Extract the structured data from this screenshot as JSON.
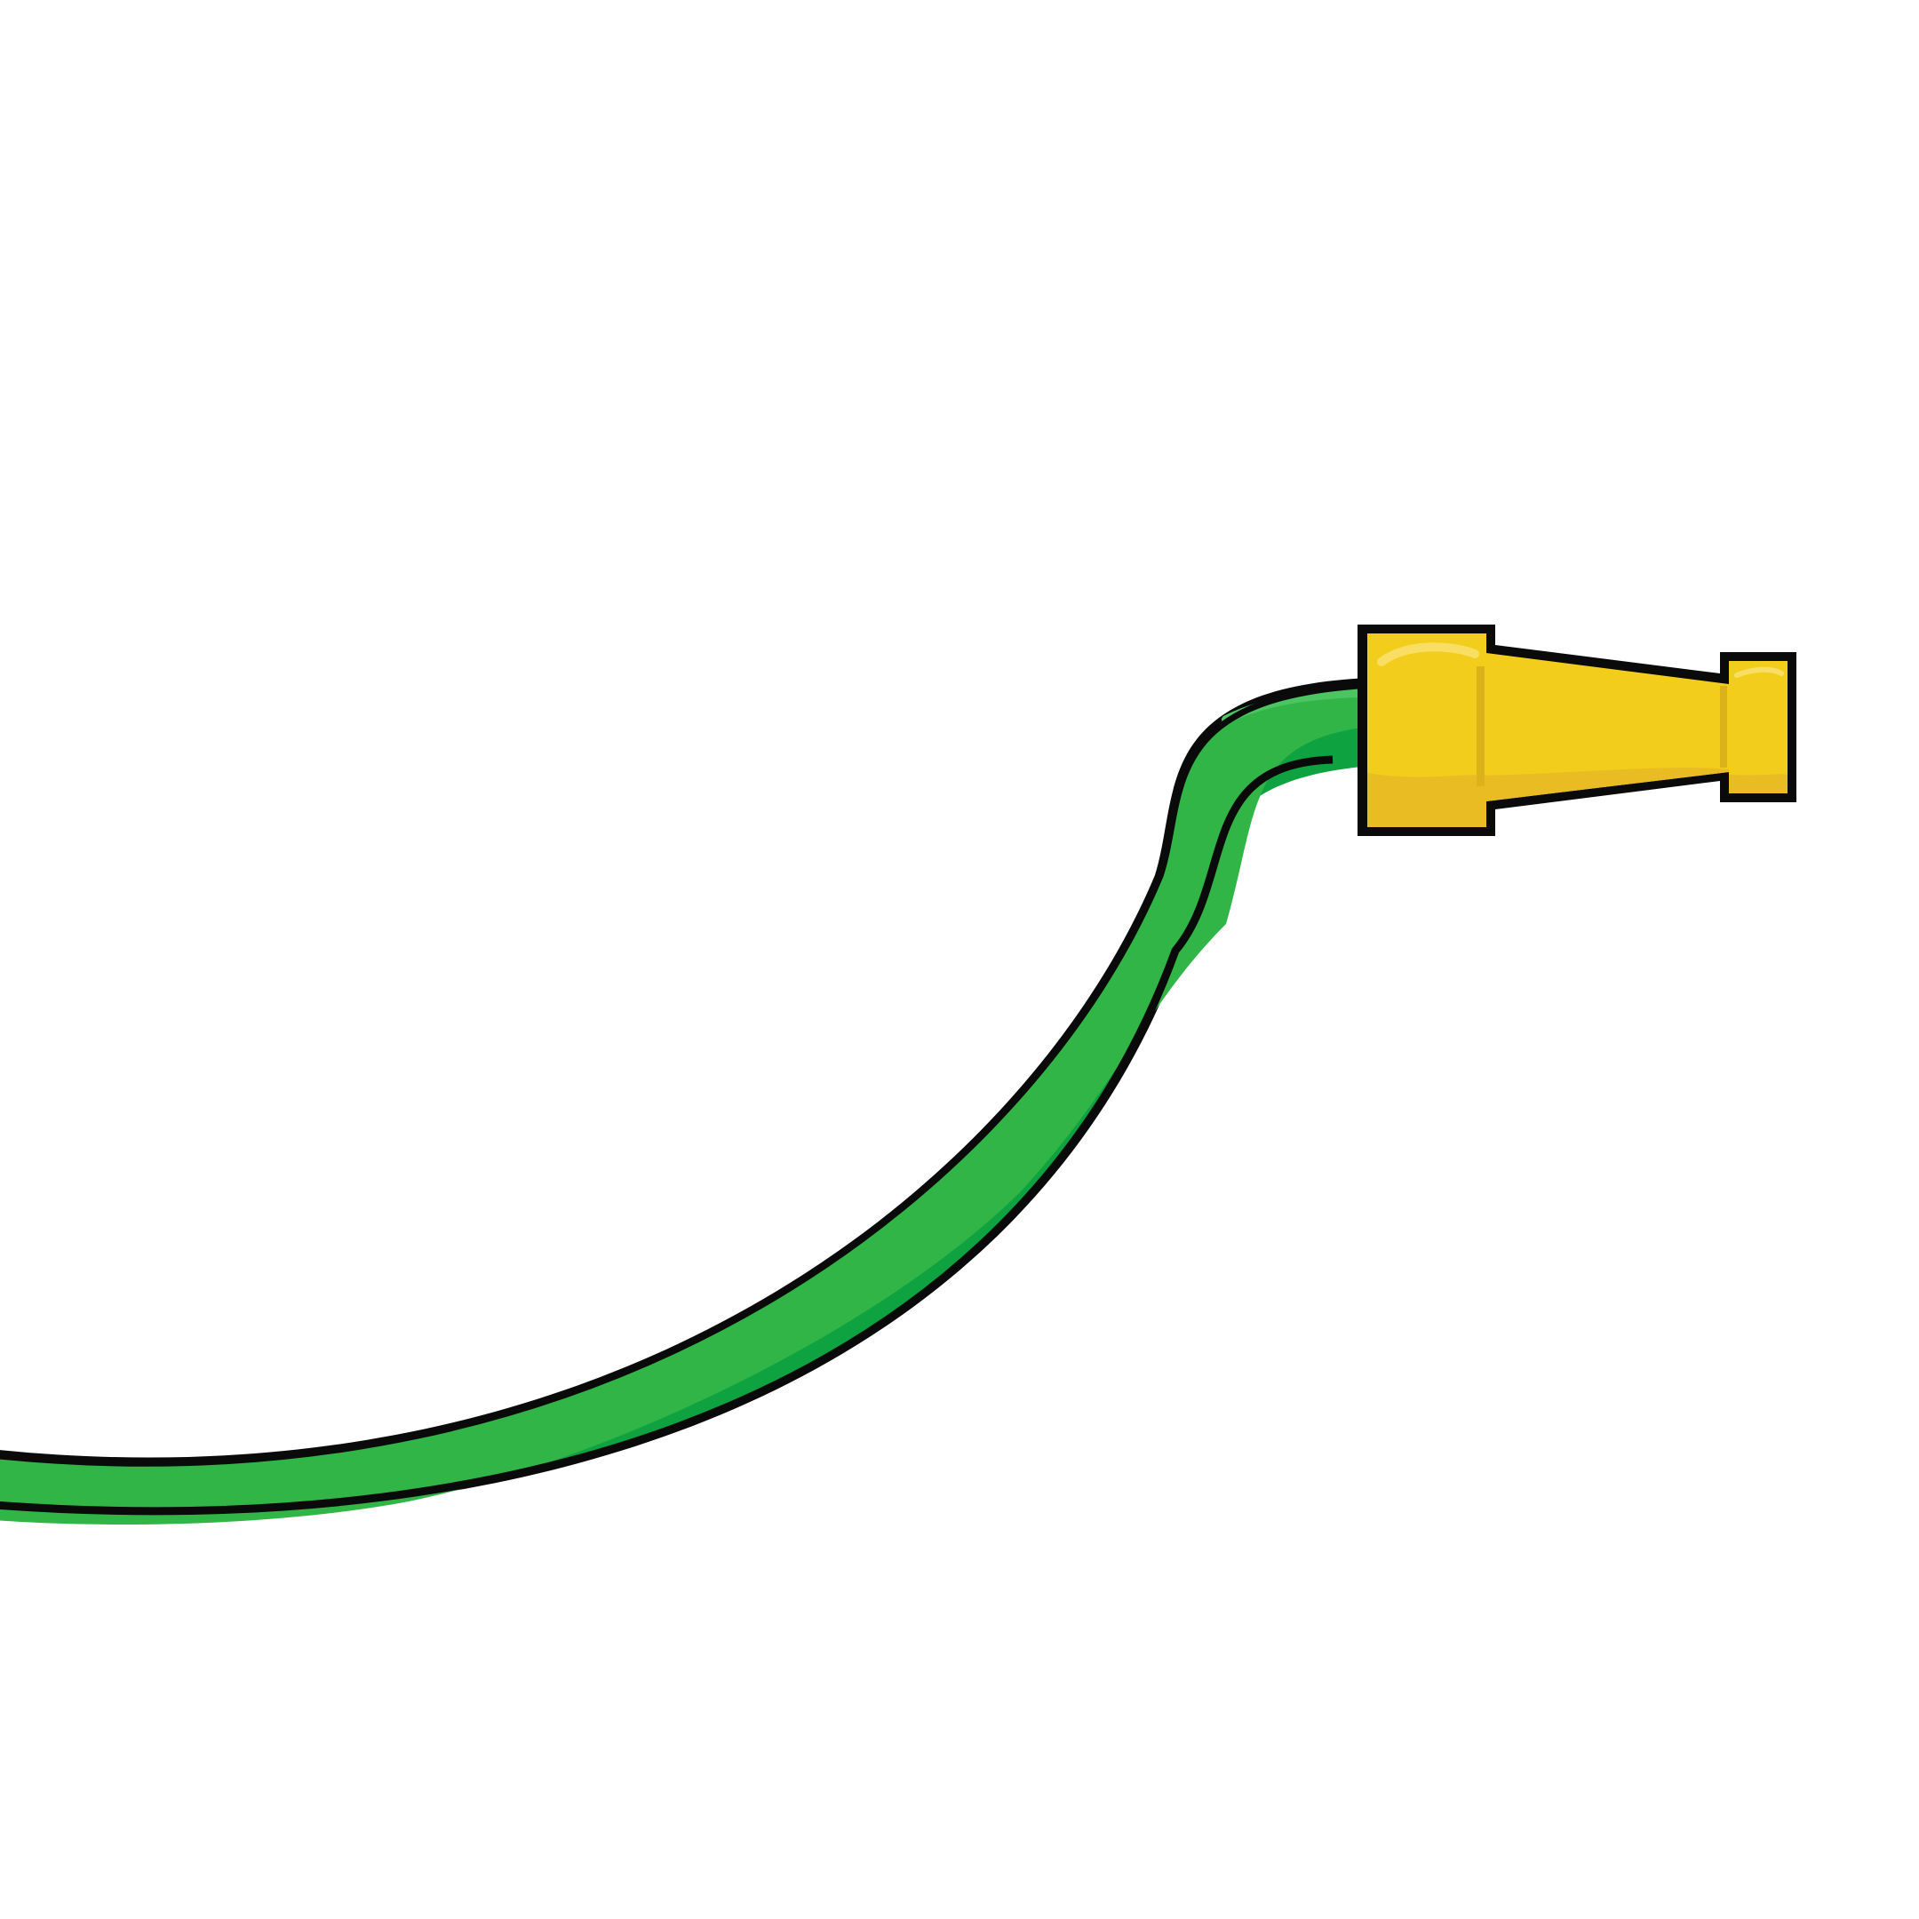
{
  "scene": {
    "subject": "garden-hose-with-nozzle",
    "background_color": "#ffffff"
  },
  "colors": {
    "outline": "#0a0a0a",
    "hose_light": "#31b547",
    "hose_dark": "#0ea240",
    "hose_highlight": "#4cc462",
    "nozzle_yellow": "#f2cd1b",
    "nozzle_shade": "#e8bc22",
    "nozzle_highlight": "#f8df63",
    "nozzle_rib": "#dbb21a"
  }
}
